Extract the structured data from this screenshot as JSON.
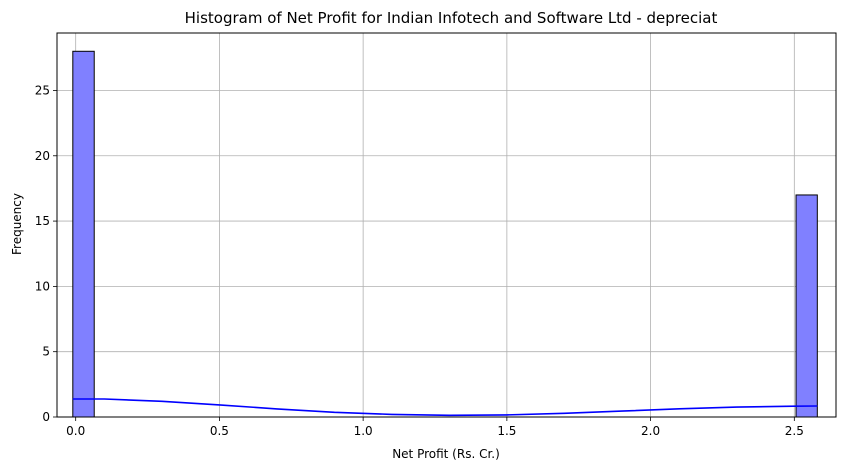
{
  "chart_data": {
    "type": "bar",
    "title": "Histogram of Net Profit for Indian Infotech and Software Ltd - depreciat",
    "xlabel": "Net Profit (Rs. Cr.)",
    "ylabel": "Frequency",
    "xlim": [
      -0.065,
      2.645
    ],
    "ylim": [
      0,
      29.4
    ],
    "grid": true,
    "xticks": [
      0.0,
      0.5,
      1.0,
      1.5,
      2.0,
      2.5
    ],
    "xtick_labels": [
      "0.0",
      "0.5",
      "1.0",
      "1.5",
      "2.0",
      "2.5"
    ],
    "yticks": [
      0,
      5,
      10,
      15,
      20,
      25
    ],
    "ytick_labels": [
      "0",
      "5",
      "10",
      "15",
      "20",
      "25"
    ],
    "bars": [
      {
        "x0": -0.01,
        "x1": 0.0645,
        "count": 28
      },
      {
        "x0": 2.506,
        "x1": 2.58,
        "count": 17
      }
    ],
    "bar_fill": "#8080ff",
    "bar_edge": "#000000",
    "kde": {
      "color": "#0000ff",
      "x": [
        -0.01,
        0.1,
        0.3,
        0.5,
        0.7,
        0.9,
        1.1,
        1.3,
        1.5,
        1.7,
        1.9,
        2.1,
        2.3,
        2.5,
        2.58
      ],
      "y": [
        1.38,
        1.38,
        1.2,
        0.93,
        0.62,
        0.36,
        0.2,
        0.13,
        0.16,
        0.28,
        0.45,
        0.63,
        0.76,
        0.83,
        0.84
      ]
    }
  }
}
